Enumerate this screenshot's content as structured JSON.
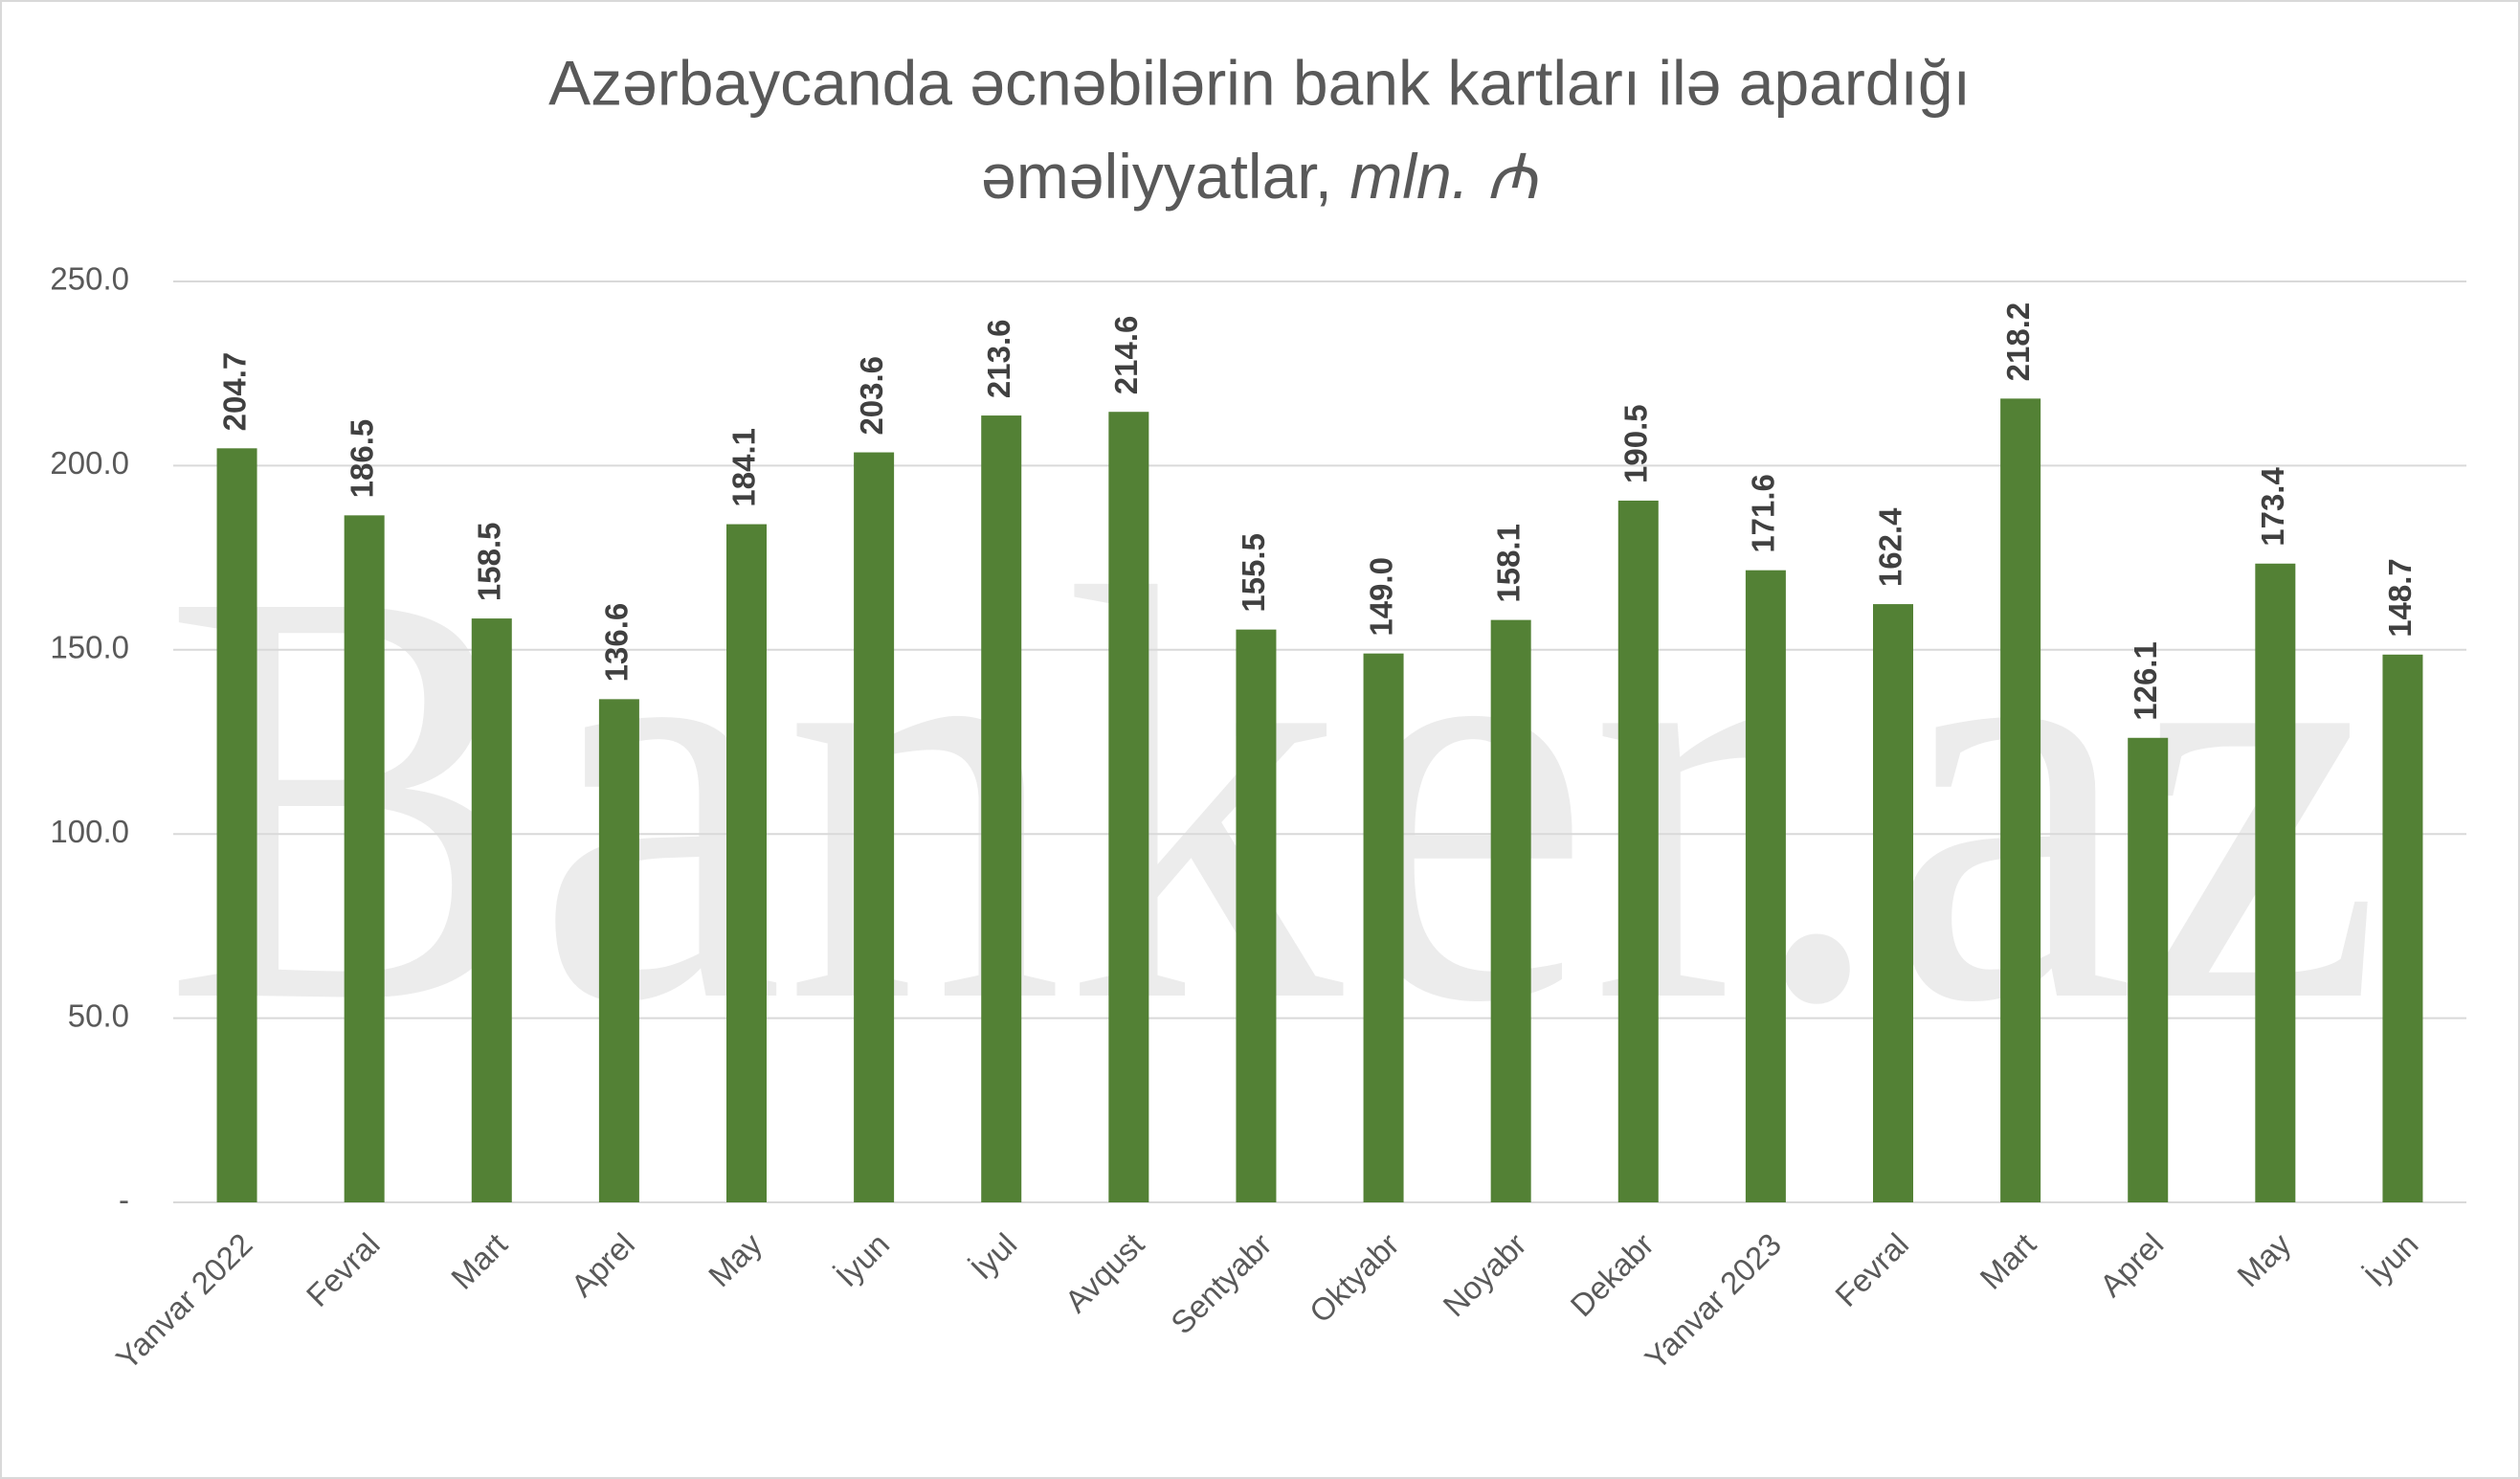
{
  "chart_data": {
    "type": "bar",
    "title": "Azərbaycanda əcnəbilərin bank kartları ilə apardığı",
    "title_line2": "əməliyyatlar,",
    "title_unit": "mln. ₼",
    "watermark": "Banker.az",
    "categories": [
      "Yanvar 2022",
      "Fevral",
      "Mart",
      "Aprel",
      "May",
      "İyun",
      "İyul",
      "Avqust",
      "Sentyabr",
      "Oktyabr",
      "Noyabr",
      "Dekabr",
      "Yanvar 2023",
      "Fevral",
      "Mart",
      "Aprel",
      "May",
      "İyun"
    ],
    "values": [
      204.7,
      186.5,
      158.5,
      136.6,
      184.1,
      203.6,
      213.6,
      214.6,
      155.5,
      149.0,
      158.1,
      190.5,
      171.6,
      162.4,
      218.2,
      126.1,
      173.4,
      148.7
    ],
    "value_labels": [
      "204.7",
      "186.5",
      "158.5",
      "136.6",
      "184.1",
      "203.6",
      "213.6",
      "214.6",
      "155.5",
      "149.0",
      "158.1",
      "190.5",
      "171.6",
      "162.4",
      "218.2",
      "126.1",
      "173.4",
      "148.7"
    ],
    "color": "#538135",
    "ylim": [
      0,
      250
    ],
    "yticks": [
      {
        "value": 0,
        "label": "-"
      },
      {
        "value": 50,
        "label": "50.0"
      },
      {
        "value": 100,
        "label": "100.0"
      },
      {
        "value": 150,
        "label": "150.0"
      },
      {
        "value": 200,
        "label": "200.0"
      },
      {
        "value": 250,
        "label": "250.0"
      }
    ],
    "grid": true
  }
}
